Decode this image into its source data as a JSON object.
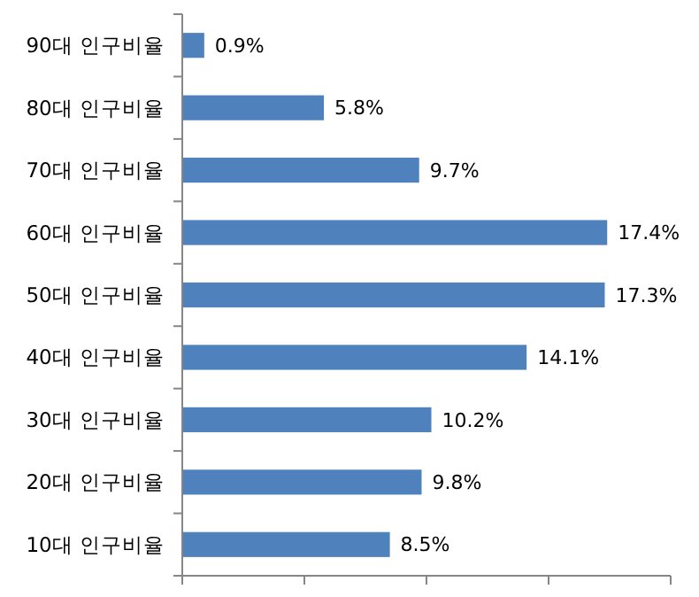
{
  "chart_data": {
    "type": "bar",
    "orientation": "horizontal",
    "categories": [
      "90대 인구비율",
      "80대 인구비율",
      "70대 인구비율",
      "60대 인구비율",
      "50대 인구비율",
      "40대 인구비율",
      "30대 인구비율",
      "20대 인구비율",
      "10대 인구비율"
    ],
    "values": [
      0.9,
      5.8,
      9.7,
      17.4,
      17.3,
      14.1,
      10.2,
      9.8,
      8.5
    ],
    "value_labels": [
      "0.9%",
      "5.8%",
      "9.7%",
      "17.4%",
      "17.3%",
      "14.1%",
      "10.2%",
      "9.8%",
      "8.5%"
    ],
    "color": "#4f81bd",
    "xlim": [
      0,
      20
    ],
    "xticks": [
      {
        "value": 0,
        "label": null
      },
      {
        "value": 5,
        "label": null
      },
      {
        "value": 10,
        "label": null
      },
      {
        "value": 15,
        "label": null
      },
      {
        "value": 20,
        "label": null
      }
    ],
    "tick_labels": "y"
  }
}
